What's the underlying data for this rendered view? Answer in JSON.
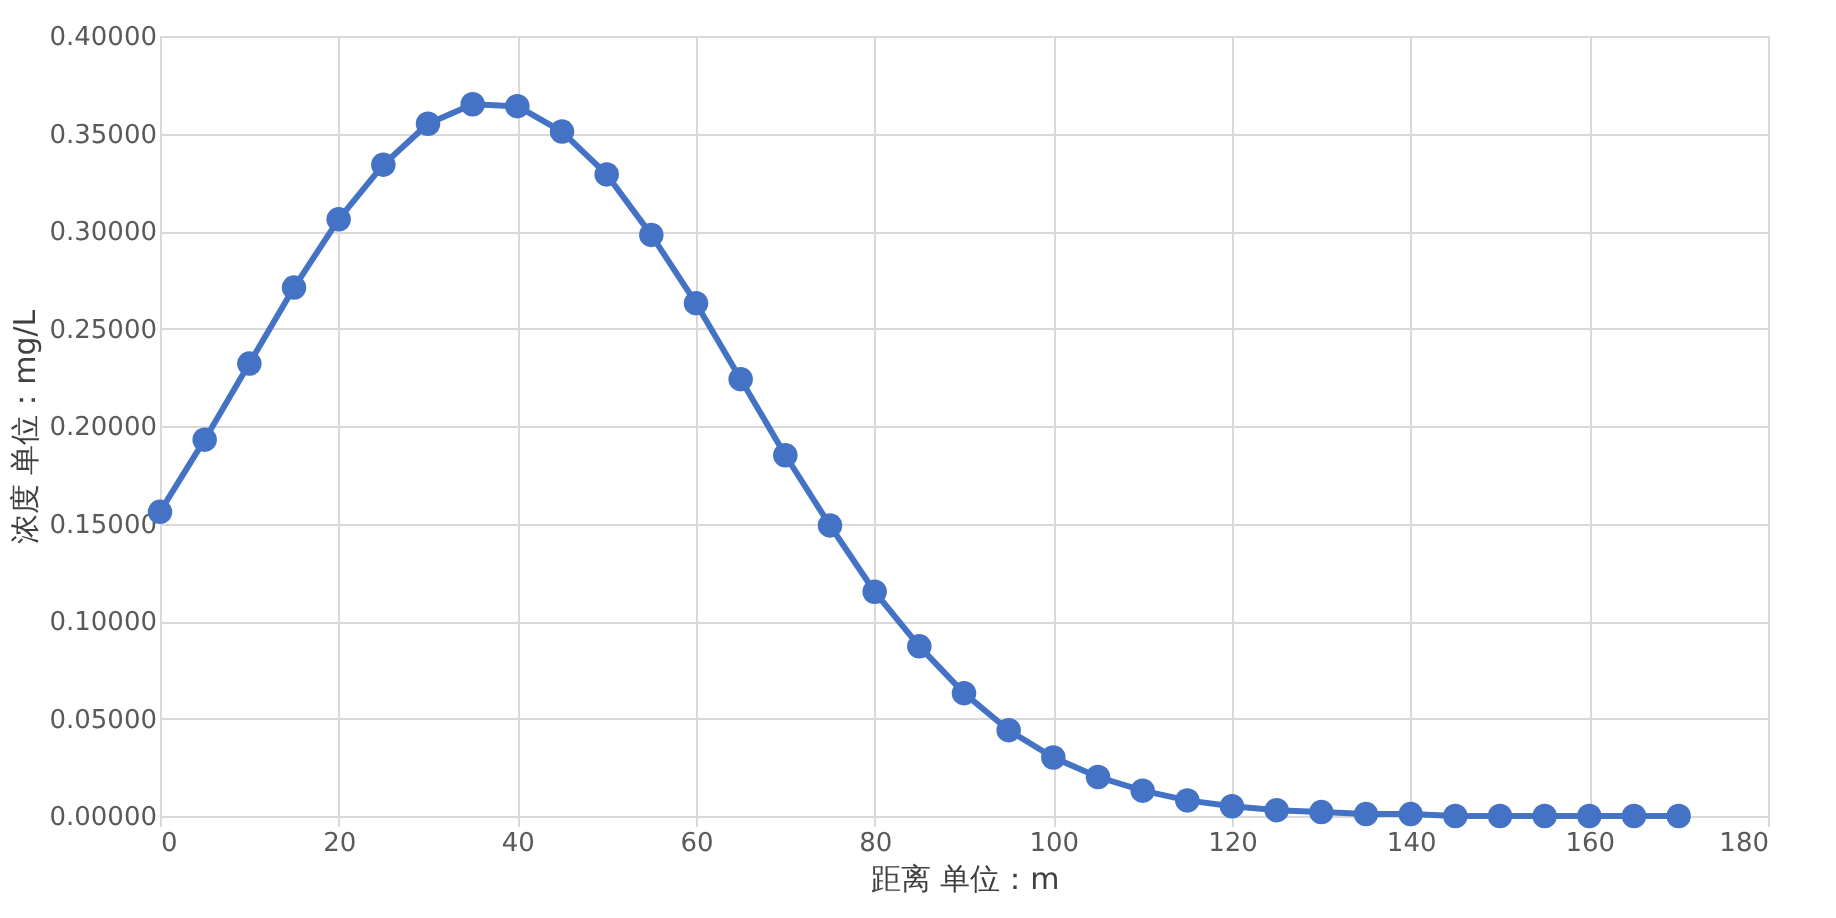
{
  "chart_data": {
    "type": "line",
    "xlabel": "距离 单位：m",
    "ylabel": "浓度 单位：mg/L",
    "x": [
      0,
      5,
      10,
      15,
      20,
      25,
      30,
      35,
      40,
      45,
      50,
      55,
      60,
      65,
      70,
      75,
      80,
      85,
      90,
      95,
      100,
      105,
      110,
      115,
      120,
      125,
      130,
      135,
      140,
      145,
      150,
      155,
      160,
      165,
      170
    ],
    "series": [
      {
        "color": "#4472c4",
        "values": [
          0.156,
          0.193,
          0.232,
          0.271,
          0.306,
          0.334,
          0.355,
          0.365,
          0.364,
          0.351,
          0.329,
          0.298,
          0.263,
          0.224,
          0.185,
          0.149,
          0.115,
          0.087,
          0.063,
          0.044,
          0.03,
          0.02,
          0.013,
          0.008,
          0.005,
          0.003,
          0.002,
          0.001,
          0.001,
          0.0,
          0.0,
          0.0,
          0.0,
          0.0,
          0.0
        ]
      }
    ],
    "xlim": [
      0,
      180
    ],
    "xticks": [
      0,
      20,
      40,
      60,
      80,
      100,
      120,
      140,
      160,
      180
    ],
    "ylim": [
      0,
      0.4
    ],
    "yticks": [
      {
        "value": 0,
        "label": "0.00000"
      },
      {
        "value": 0.05,
        "label": "0.05000"
      },
      {
        "value": 0.1,
        "label": "0.10000"
      },
      {
        "value": 0.15,
        "label": "0.15000"
      },
      {
        "value": 0.2,
        "label": "0.20000"
      },
      {
        "value": 0.25,
        "label": "0.25000"
      },
      {
        "value": 0.3,
        "label": "0.30000"
      },
      {
        "value": 0.35,
        "label": "0.35000"
      },
      {
        "value": 0.4,
        "label": "0.40000"
      }
    ],
    "grid": true,
    "marker": "circle",
    "line_style": "solid"
  }
}
